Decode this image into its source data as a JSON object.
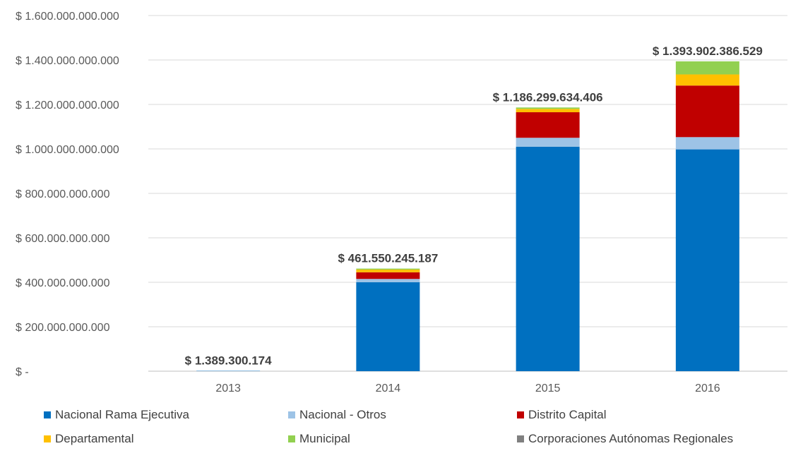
{
  "chart_data": {
    "type": "bar",
    "stacked": true,
    "categories": [
      "2013",
      "2014",
      "2015",
      "2016"
    ],
    "yticks": [
      "$ -",
      "$ 200.000.000.000",
      "$ 400.000.000.000",
      "$ 600.000.000.000",
      "$ 800.000.000.000",
      "$ 1.000.000.000.000",
      "$ 1.200.000.000.000",
      "$ 1.400.000.000.000",
      "$ 1.600.000.000.000"
    ],
    "ylim": [
      0,
      1600000000000
    ],
    "grid": true,
    "legend_position": "bottom",
    "totals_labels": [
      "$ 1.389.300.174",
      "$ 461.550.245.187",
      "$ 1.186.299.634.406",
      "$ 1.393.902.386.529"
    ],
    "totals": [
      1389300174,
      461550245187,
      1186299634406,
      1393902386529
    ],
    "series": [
      {
        "name": "Nacional Rama Ejecutiva",
        "color": "#0070C0",
        "values": [
          1389300174,
          400000000000,
          1010000000000,
          998000000000
        ]
      },
      {
        "name": "Nacional - Otros",
        "color": "#9DC3E6",
        "values": [
          0,
          15000000000,
          40000000000,
          55000000000
        ]
      },
      {
        "name": "Distrito Capital",
        "color": "#C00000",
        "values": [
          0,
          30000000000,
          115000000000,
          232000000000
        ]
      },
      {
        "name": "Departamental",
        "color": "#FFC000",
        "values": [
          0,
          12000000000,
          15000000000,
          50000000000
        ]
      },
      {
        "name": "Municipal",
        "color": "#92D050",
        "values": [
          0,
          4550245187,
          6299634406,
          58902386529
        ]
      },
      {
        "name": "Corporaciones Autónomas Regionales",
        "color": "#808080",
        "values": [
          0,
          0,
          0,
          0
        ]
      }
    ]
  }
}
